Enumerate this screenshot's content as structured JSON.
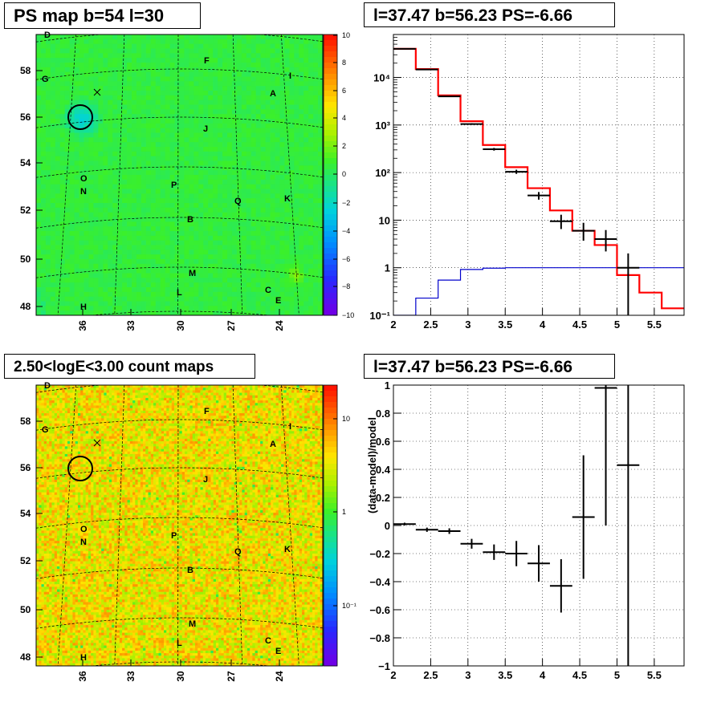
{
  "panels": {
    "ps_map": {
      "title": "PS map b=54 l=30",
      "xticks": [
        "36",
        "33",
        "30",
        "27",
        "24"
      ],
      "yticks": [
        "58",
        "56",
        "54",
        "52",
        "50",
        "48"
      ],
      "colorbar_ticks": [
        "10",
        "8",
        "6",
        "4",
        "2",
        "0",
        "−2",
        "−4",
        "−6",
        "−8",
        "−10"
      ],
      "source_labels": [
        {
          "t": "D"
        },
        {
          "t": "G"
        },
        {
          "t": "F"
        },
        {
          "t": "I"
        },
        {
          "t": "A"
        },
        {
          "t": "J"
        },
        {
          "t": "O"
        },
        {
          "t": "N"
        },
        {
          "t": "P"
        },
        {
          "t": "Q"
        },
        {
          "t": "K"
        },
        {
          "t": "B"
        },
        {
          "t": "M"
        },
        {
          "t": "L"
        },
        {
          "t": "C"
        },
        {
          "t": "E"
        },
        {
          "t": "H"
        }
      ]
    },
    "spectrum": {
      "title": "l=37.47 b=56.23 PS=-6.66"
    },
    "count_map": {
      "title": "2.50<logE<3.00 count maps",
      "colorbar_ticks": [
        "10",
        "1",
        "10⁻¹"
      ]
    },
    "residual": {
      "title": "l=37.47 b=56.23 PS=-6.66"
    }
  },
  "chart_data": [
    {
      "type": "heatmap",
      "name": "PS map",
      "title": "PS map b=54 l=30",
      "xlabel": "",
      "ylabel": "",
      "xticks": [
        36,
        33,
        30,
        27,
        24
      ],
      "yticks": [
        58,
        56,
        54,
        52,
        50,
        48
      ],
      "color_range": [
        -10,
        10
      ],
      "circle_marker": {
        "l": 36.0,
        "b": 56.0
      },
      "dominant_colors": [
        "#33ee33",
        "#22dd55",
        "#33bbdd"
      ]
    },
    {
      "type": "line",
      "name": "spectrum",
      "title": "l=37.47 b=56.23 PS=-6.66",
      "xlim": [
        2,
        5.9
      ],
      "ylim": [
        0.1,
        80000
      ],
      "yscale": "log",
      "xticks": [
        "2",
        "2.5",
        "3",
        "3.5",
        "4",
        "4.5",
        "5",
        "5.5"
      ],
      "yticks": [
        "10⁻¹",
        "1",
        "10",
        "10²",
        "10³",
        "10⁴"
      ],
      "grid": true,
      "series": [
        {
          "role": "model",
          "color": "#ff0000",
          "edges": [
            2.0,
            2.3,
            2.6,
            2.9,
            3.2,
            3.5,
            3.8,
            4.1,
            4.4,
            4.7,
            5.0,
            5.3,
            5.6,
            5.9
          ],
          "values": [
            40000,
            15000,
            4200,
            1200,
            380,
            130,
            47,
            16,
            6.0,
            3.0,
            0.7,
            0.3,
            0.14
          ]
        },
        {
          "role": "model-component",
          "color": "#0000cc",
          "edges": [
            2.0,
            2.3,
            2.6,
            2.9,
            3.2,
            3.5,
            3.8,
            4.1,
            4.4,
            4.7,
            5.0,
            5.3,
            5.6,
            5.9
          ],
          "values": [
            0.1,
            0.23,
            0.55,
            0.92,
            0.98,
            1.0,
            1.0,
            1.0,
            1.0,
            1.0,
            1.0,
            1.0,
            1.0
          ]
        },
        {
          "role": "data",
          "color": "#000000",
          "points": [
            {
              "x": 2.15,
              "xerr": 0.15,
              "y": 40000,
              "ylo": 40000,
              "yhi": 40000
            },
            {
              "x": 2.45,
              "xerr": 0.15,
              "y": 14700,
              "ylo": 14500,
              "yhi": 14900
            },
            {
              "x": 2.75,
              "xerr": 0.15,
              "y": 4000,
              "ylo": 3900,
              "yhi": 4100
            },
            {
              "x": 3.05,
              "xerr": 0.15,
              "y": 1050,
              "ylo": 1010,
              "yhi": 1090
            },
            {
              "x": 3.35,
              "xerr": 0.15,
              "y": 310,
              "ylo": 290,
              "yhi": 330
            },
            {
              "x": 3.65,
              "xerr": 0.15,
              "y": 104,
              "ylo": 94,
              "yhi": 115
            },
            {
              "x": 3.95,
              "xerr": 0.15,
              "y": 33,
              "ylo": 27,
              "yhi": 39
            },
            {
              "x": 4.25,
              "xerr": 0.15,
              "y": 9.5,
              "ylo": 6.5,
              "yhi": 13
            },
            {
              "x": 4.55,
              "xerr": 0.15,
              "y": 6.0,
              "ylo": 3.7,
              "yhi": 8.8
            },
            {
              "x": 4.85,
              "xerr": 0.15,
              "y": 4.0,
              "ylo": 2.2,
              "yhi": 6.2
            },
            {
              "x": 5.15,
              "xerr": 0.15,
              "y": 1.0,
              "ylo": 0.1,
              "yhi": 2.0
            }
          ]
        }
      ]
    },
    {
      "type": "heatmap",
      "name": "count map",
      "title": "2.50<logE<3.00 count maps",
      "xticks": [
        36,
        33,
        30,
        27,
        24
      ],
      "yticks": [
        58,
        56,
        54,
        52,
        50,
        48
      ],
      "color_scale": "log",
      "color_ticks": [
        "10",
        "1",
        "10⁻¹"
      ],
      "circle_marker": {
        "l": 36.0,
        "b": 56.0
      },
      "dominant_colors": [
        "#ff9900",
        "#ffcc00",
        "#ff4400"
      ]
    },
    {
      "type": "scatter",
      "name": "residuals",
      "title": "l=37.47 b=56.23 PS=-6.66",
      "ylabel": "(data-model)/model",
      "xlim": [
        2,
        5.9
      ],
      "ylim": [
        -1,
        1
      ],
      "xticks": [
        "2",
        "2.5",
        "3",
        "3.5",
        "4",
        "4.5",
        "5",
        "5.5"
      ],
      "yticks": [
        "−1",
        "−0.8",
        "−0.6",
        "−0.4",
        "−0.2",
        "0",
        "0.2",
        "0.4",
        "0.6",
        "0.8",
        "1"
      ],
      "grid": true,
      "points": [
        {
          "x": 2.15,
          "xerr": 0.15,
          "y": 0.01,
          "yerr": 0.01
        },
        {
          "x": 2.45,
          "xerr": 0.15,
          "y": -0.03,
          "yerr": 0.015
        },
        {
          "x": 2.75,
          "xerr": 0.15,
          "y": -0.04,
          "yerr": 0.02
        },
        {
          "x": 3.05,
          "xerr": 0.15,
          "y": -0.13,
          "yerr": 0.035
        },
        {
          "x": 3.35,
          "xerr": 0.15,
          "y": -0.19,
          "yerr": 0.055
        },
        {
          "x": 3.65,
          "xerr": 0.15,
          "y": -0.2,
          "yerr": 0.09
        },
        {
          "x": 3.95,
          "xerr": 0.15,
          "y": -0.27,
          "yerr": 0.13
        },
        {
          "x": 4.25,
          "xerr": 0.15,
          "y": -0.43,
          "yerr": 0.19
        },
        {
          "x": 4.55,
          "xerr": 0.15,
          "y": 0.06,
          "yerr": 0.44
        },
        {
          "x": 4.85,
          "xerr": 0.15,
          "y": 0.98,
          "yerr": 0.98
        },
        {
          "x": 5.15,
          "xerr": 0.15,
          "y": 0.43,
          "yerr": 1.6
        }
      ]
    }
  ]
}
